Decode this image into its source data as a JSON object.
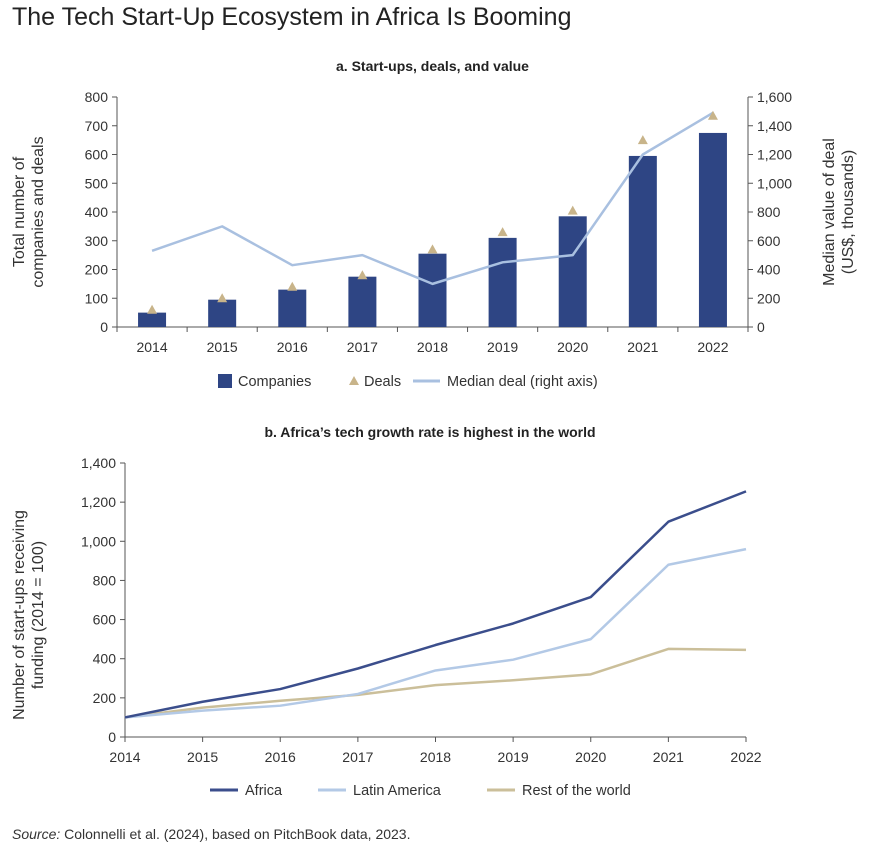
{
  "page": {
    "title": "The Tech Start-Up Ecosystem in Africa Is Booming",
    "source_prefix": "Source:",
    "source_text": " Colonnelli et al. (2024), based on PitchBook data, 2023."
  },
  "colors": {
    "companies": "#2e4584",
    "deals": "#c8b48a",
    "median": "#a9c0e0",
    "africa": "#3b4e8c",
    "latin_america": "#b3c9e6",
    "rest_of_world": "#cbbf9a",
    "axis": "#555555"
  },
  "chart_data": [
    {
      "type": "bar",
      "title": "a. Start-ups, deals, and value",
      "categories": [
        "2014",
        "2015",
        "2016",
        "2017",
        "2018",
        "2019",
        "2020",
        "2021",
        "2022"
      ],
      "ylabel": "Total number of companies and deals",
      "y2label": "Median value of deal (US$, thousands)",
      "ylim": [
        0,
        800
      ],
      "y2lim": [
        0,
        1600
      ],
      "yticks": [
        0,
        100,
        200,
        300,
        400,
        500,
        600,
        700,
        800
      ],
      "y2ticks": [
        0,
        200,
        400,
        600,
        800,
        1000,
        1200,
        1400,
        1600
      ],
      "ytick_labels": [
        "0",
        "100",
        "200",
        "300",
        "400",
        "500",
        "600",
        "700",
        "800"
      ],
      "y2tick_labels": [
        "0",
        "200",
        "400",
        "600",
        "800",
        "1,000",
        "1,200",
        "1,400",
        "1,600"
      ],
      "series": [
        {
          "name": "Companies",
          "kind": "bar",
          "axis": "left",
          "values": [
            50,
            95,
            130,
            175,
            255,
            310,
            385,
            595,
            675
          ]
        },
        {
          "name": "Deals",
          "kind": "marker",
          "axis": "left",
          "values": [
            60,
            100,
            140,
            180,
            270,
            330,
            405,
            650,
            735
          ]
        },
        {
          "name": "Median deal (right axis)",
          "kind": "line",
          "axis": "right",
          "values": [
            530,
            700,
            430,
            500,
            300,
            450,
            500,
            1200,
            1490
          ]
        }
      ],
      "legend_position": "bottom",
      "grid": false
    },
    {
      "type": "line",
      "title": "b. Africa’s tech growth rate is highest in the world",
      "x": [
        "2014",
        "2015",
        "2016",
        "2017",
        "2018",
        "2019",
        "2020",
        "2021",
        "2022"
      ],
      "ylabel": "Number of start-ups receiving funding (2014 = 100)",
      "ylim": [
        0,
        1400
      ],
      "yticks": [
        0,
        200,
        400,
        600,
        800,
        1000,
        1200,
        1400
      ],
      "ytick_labels": [
        "0",
        "200",
        "400",
        "600",
        "800",
        "1,000",
        "1,200",
        "1,400"
      ],
      "series": [
        {
          "name": "Africa",
          "values": [
            100,
            180,
            245,
            350,
            470,
            580,
            715,
            1100,
            1255
          ]
        },
        {
          "name": "Latin America",
          "values": [
            100,
            135,
            160,
            220,
            340,
            395,
            500,
            880,
            960
          ]
        },
        {
          "name": "Rest of the world",
          "values": [
            100,
            150,
            185,
            215,
            265,
            290,
            320,
            450,
            445
          ]
        }
      ],
      "legend_position": "bottom",
      "grid": false
    }
  ]
}
